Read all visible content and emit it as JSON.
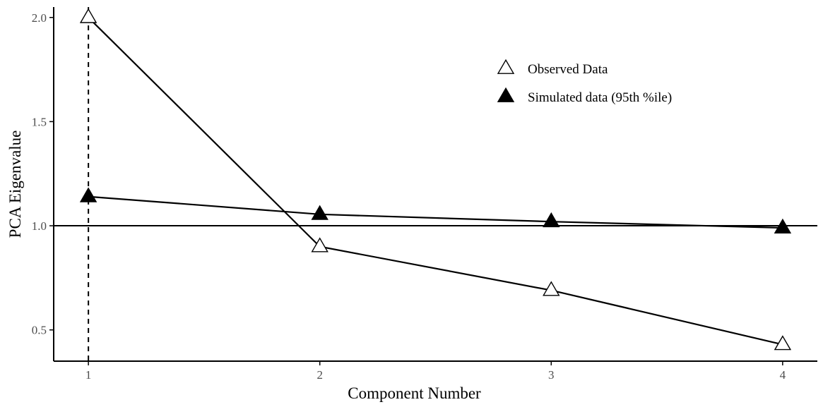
{
  "chart_data": {
    "type": "line",
    "title": "",
    "xlabel": "Component Number",
    "ylabel": "PCA Eigenvalue",
    "x": [
      1,
      2,
      3,
      4
    ],
    "xticks": [
      "1",
      "2",
      "3",
      "4"
    ],
    "yticks": [
      "0.5",
      "1.0",
      "1.5",
      "2.0"
    ],
    "xlim": [
      0.85,
      4.15
    ],
    "ylim": [
      0.35,
      2.05
    ],
    "series": [
      {
        "name": "Observed Data",
        "values": [
          2.0,
          0.9,
          0.69,
          0.43
        ],
        "marker": "open-triangle"
      },
      {
        "name": "Simulated data (95th %ile)",
        "values": [
          1.14,
          1.055,
          1.02,
          0.99
        ],
        "marker": "filled-triangle"
      }
    ],
    "reference_lines": {
      "horizontal_y": 1.0,
      "vertical_x": 1
    },
    "legend_position": "top-right",
    "grid": false,
    "colors": {
      "line": "#000000",
      "axis": "#000000",
      "tick_text": "#4d4d4d"
    }
  }
}
